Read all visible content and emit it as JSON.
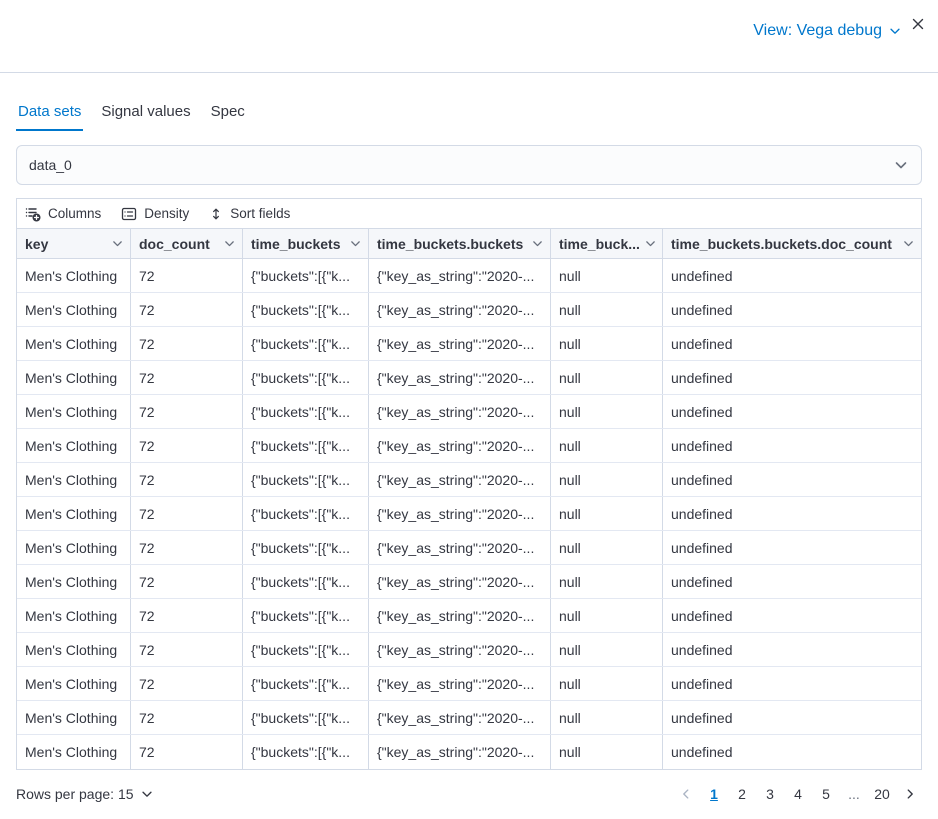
{
  "header": {
    "view_label": "View: Vega debug"
  },
  "tabs": [
    {
      "label": "Data sets",
      "active": true
    },
    {
      "label": "Signal values",
      "active": false
    },
    {
      "label": "Spec",
      "active": false
    }
  ],
  "dataset_select": {
    "value": "data_0"
  },
  "toolbar": {
    "columns_label": "Columns",
    "density_label": "Density",
    "sort_fields_label": "Sort fields"
  },
  "grid": {
    "columns": [
      "key",
      "doc_count",
      "time_buckets",
      "time_buckets.buckets",
      "time_buck...",
      "time_buckets.buckets.doc_count"
    ],
    "row_cells": [
      "Men's Clothing",
      "72",
      "{\"buckets\":[{\"k...",
      "{\"key_as_string\":\"2020-...",
      "null",
      "undefined"
    ],
    "row_count": 15
  },
  "pagination": {
    "rows_per_page_label": "Rows per page: 15",
    "pages": [
      "1",
      "2",
      "3",
      "4",
      "5",
      "...",
      "20"
    ],
    "active_page": "1"
  },
  "colors": {
    "accent": "#0077cc",
    "text": "#343741",
    "subdued": "#69707d",
    "border": "#d3dae6",
    "header_bg": "#f5f7fa"
  }
}
